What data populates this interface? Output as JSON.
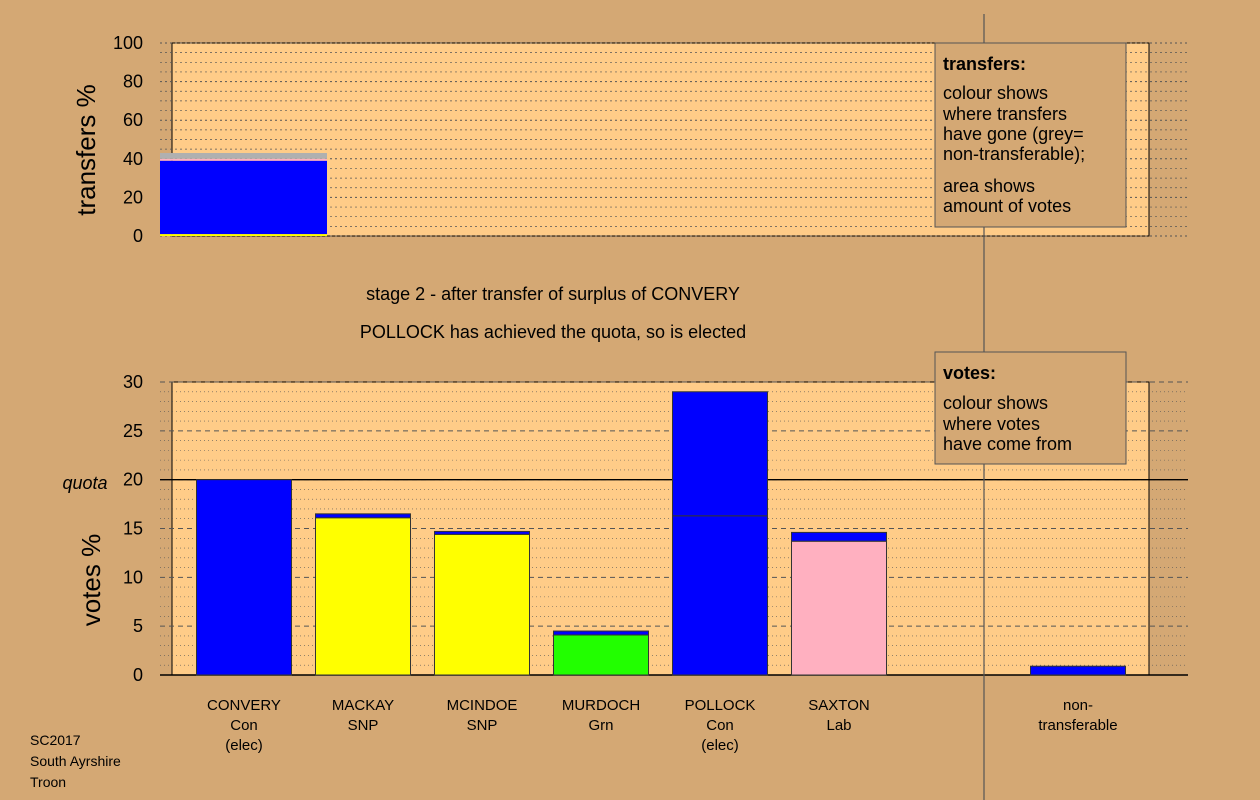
{
  "chart_data": [
    {
      "type": "bar",
      "panel": "transfers",
      "ylabel": "transfers %",
      "ylim": [
        0,
        100
      ],
      "yticks": [
        0,
        20,
        40,
        60,
        80,
        100
      ],
      "categories": [
        "CONVERY"
      ],
      "series": [
        {
          "color": "#ffff00",
          "values": [
            1
          ]
        },
        {
          "color": "#0000ff",
          "values": [
            38
          ]
        },
        {
          "color": "#ffb0c0",
          "values": [
            1
          ]
        },
        {
          "color": "#b0b0b0",
          "values": [
            3
          ]
        }
      ]
    },
    {
      "type": "bar",
      "panel": "votes",
      "ylabel": "votes %",
      "ylim": [
        0,
        30
      ],
      "yticks": [
        0,
        5,
        10,
        15,
        20,
        25,
        30
      ],
      "quota": 20,
      "quota_label": "quota",
      "categories": [
        {
          "name": "CONVERY",
          "party": "Con",
          "status": "(elec)"
        },
        {
          "name": "MACKAY",
          "party": "SNP",
          "status": ""
        },
        {
          "name": "MCINDOE",
          "party": "SNP",
          "status": ""
        },
        {
          "name": "MURDOCH",
          "party": "Grn",
          "status": ""
        },
        {
          "name": "POLLOCK",
          "party": "Con",
          "status": "(elec)"
        },
        {
          "name": "SAXTON",
          "party": "Lab",
          "status": ""
        },
        {
          "name": "non-\ntransferable",
          "party": "",
          "status": ""
        }
      ],
      "segments": [
        [
          {
            "color": "#0000ff",
            "value": 20.0
          }
        ],
        [
          {
            "color": "#ffff00",
            "value": 16.1
          },
          {
            "color": "#0000ff",
            "value": 0.4
          }
        ],
        [
          {
            "color": "#ffff00",
            "value": 14.4
          },
          {
            "color": "#0000ff",
            "value": 0.3
          }
        ],
        [
          {
            "color": "#22ff00",
            "value": 4.1
          },
          {
            "color": "#0000ff",
            "value": 0.4
          }
        ],
        [
          {
            "color": "#0000ff",
            "value": 16.3
          },
          {
            "color": "#0000ff",
            "value": 12.7
          }
        ],
        [
          {
            "color": "#ffb0c0",
            "value": 13.7
          },
          {
            "color": "#0000ff",
            "value": 0.9
          }
        ],
        [
          {
            "color": "#0000ff",
            "value": 0.9
          }
        ]
      ]
    }
  ],
  "caption": {
    "line1": "stage 2 - after transfer of surplus of CONVERY",
    "line2": "POLLOCK has achieved the quota, so is elected"
  },
  "legend_transfers": {
    "title": "transfers:",
    "lines": [
      "colour shows",
      "where transfers",
      "have gone (grey=",
      "non-transferable);",
      "area shows",
      "amount of votes"
    ]
  },
  "legend_votes": {
    "title": "votes:",
    "lines": [
      "colour shows",
      "where votes",
      "have come from"
    ]
  },
  "footer": [
    "SC2017",
    "South Ayrshire",
    "Troon"
  ],
  "colors": {
    "background": "#d4a874",
    "plot_background": "#ffcc88",
    "legend_background": "#d4a874"
  }
}
